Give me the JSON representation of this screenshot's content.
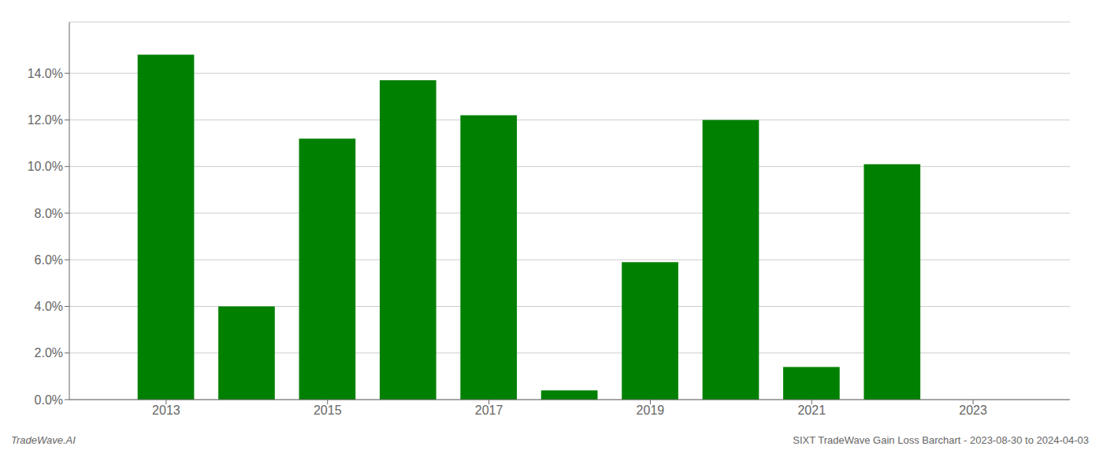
{
  "chart_data": {
    "type": "bar",
    "x": [
      2013,
      2014,
      2015,
      2016,
      2017,
      2018,
      2019,
      2020,
      2021,
      2022,
      2023
    ],
    "values": [
      0.148,
      0.04,
      0.112,
      0.137,
      0.122,
      0.004,
      0.059,
      0.12,
      0.014,
      0.101,
      null
    ],
    "color": "#008000",
    "xlim": [
      2011.8,
      2024.2
    ],
    "xticks": [
      2013,
      2015,
      2017,
      2019,
      2021,
      2023
    ],
    "ylim": [
      0,
      0.162
    ],
    "yticks": [
      {
        "value": 0.0,
        "label": "0.0%"
      },
      {
        "value": 0.02,
        "label": "2.0%"
      },
      {
        "value": 0.04,
        "label": "4.0%"
      },
      {
        "value": 0.06,
        "label": "6.0%"
      },
      {
        "value": 0.08,
        "label": "8.0%"
      },
      {
        "value": 0.1,
        "label": "10.0%"
      },
      {
        "value": 0.12,
        "label": "12.0%"
      },
      {
        "value": 0.14,
        "label": "14.0%"
      }
    ],
    "grid": true,
    "annotations": [
      "TradeWave.AI",
      "SIXT TradeWave Gain Loss Barchart - 2023-08-30 to 2024-04-03"
    ]
  }
}
